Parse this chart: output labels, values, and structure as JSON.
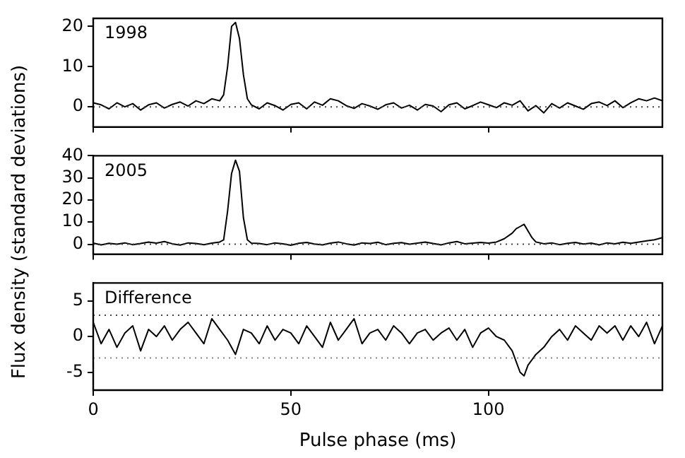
{
  "chart_data": [
    {
      "type": "line",
      "annotations": [
        "1998"
      ],
      "xlim": [
        0,
        144
      ],
      "xticks": [
        0,
        50,
        100
      ],
      "ylim": [
        -5,
        22
      ],
      "yticks": [
        0,
        10,
        20
      ],
      "tick_labels": "y",
      "grid": false,
      "legend": false,
      "marker": "none",
      "line_style": "solid",
      "ref_lines": [
        {
          "axis": "y",
          "value": 0,
          "color": "#444444",
          "line_style": "dotted"
        }
      ],
      "series": [
        {
          "color": "#000000",
          "x": [
            0,
            2,
            4,
            6,
            8,
            10,
            12,
            14,
            16,
            18,
            20,
            22,
            24,
            26,
            28,
            30,
            32,
            33,
            34,
            35,
            36,
            37,
            38,
            39,
            40,
            42,
            44,
            46,
            48,
            50,
            52,
            54,
            56,
            58,
            60,
            62,
            64,
            66,
            68,
            70,
            72,
            74,
            76,
            78,
            80,
            82,
            84,
            86,
            88,
            90,
            92,
            94,
            96,
            98,
            100,
            102,
            104,
            106,
            108,
            110,
            112,
            114,
            116,
            118,
            120,
            122,
            124,
            126,
            128,
            130,
            132,
            134,
            136,
            138,
            140,
            142,
            144
          ],
          "values": [
            1,
            0.5,
            -0.5,
            1,
            0,
            0.8,
            -0.8,
            0.5,
            1,
            -0.3,
            0.6,
            1.2,
            0.2,
            1.5,
            0.8,
            2,
            1.5,
            3,
            10,
            20,
            21,
            17,
            8,
            2,
            0.5,
            -0.5,
            1,
            0.3,
            -0.8,
            0.6,
            1,
            -0.5,
            1.2,
            0.4,
            2,
            1.5,
            0.3,
            -0.4,
            0.8,
            0.2,
            -0.6,
            0.5,
            1,
            -0.3,
            0.4,
            -0.8,
            0.6,
            0.2,
            -1.2,
            0.5,
            1,
            -0.5,
            0.3,
            1.2,
            0.5,
            -0.2,
            1,
            0.4,
            1.5,
            -1,
            0.3,
            -1.5,
            0.8,
            -0.3,
            1,
            0.2,
            -0.6,
            0.8,
            1.2,
            0.3,
            1.5,
            -0.2,
            1,
            2,
            1.5,
            2.2,
            1.5
          ]
        }
      ]
    },
    {
      "type": "line",
      "annotations": [
        "2005"
      ],
      "ylabel": "Flux density (standard deviations)",
      "xlim": [
        0,
        144
      ],
      "xticks": [
        0,
        50,
        100
      ],
      "ylim": [
        -4.5,
        40
      ],
      "yticks": [
        0,
        10,
        20,
        30,
        40
      ],
      "tick_labels": "y",
      "grid": false,
      "legend": false,
      "marker": "none",
      "line_style": "solid",
      "ref_lines": [
        {
          "axis": "y",
          "value": 0,
          "color": "#444444",
          "line_style": "dotted"
        }
      ],
      "series": [
        {
          "color": "#000000",
          "x": [
            0,
            2,
            4,
            6,
            8,
            10,
            12,
            14,
            16,
            18,
            20,
            22,
            24,
            26,
            28,
            30,
            32,
            33,
            34,
            35,
            36,
            37,
            38,
            39,
            40,
            42,
            44,
            46,
            48,
            50,
            52,
            54,
            56,
            58,
            60,
            62,
            64,
            66,
            68,
            70,
            72,
            74,
            76,
            78,
            80,
            82,
            84,
            86,
            88,
            90,
            92,
            94,
            96,
            98,
            100,
            102,
            104,
            106,
            107,
            108,
            109,
            110,
            111,
            112,
            114,
            116,
            118,
            120,
            122,
            124,
            126,
            128,
            130,
            132,
            134,
            136,
            138,
            140,
            142,
            144
          ],
          "values": [
            0.5,
            -0.3,
            0.4,
            0,
            0.6,
            -0.2,
            0.3,
            1,
            0.5,
            1.2,
            0.2,
            -0.4,
            0.6,
            0.3,
            -0.2,
            0.5,
            1,
            2,
            15,
            32,
            38,
            33,
            12,
            2,
            0.5,
            0.3,
            -0.2,
            0.6,
            0.2,
            -0.5,
            0.4,
            0.8,
            0.1,
            -0.3,
            0.5,
            1,
            0.2,
            -0.4,
            0.6,
            0.3,
            0.9,
            -0.2,
            0.4,
            0.7,
            0,
            0.5,
            1,
            0.3,
            -0.3,
            0.6,
            1.2,
            0.2,
            0.5,
            0.8,
            0.5,
            1,
            2.5,
            5,
            7,
            8,
            9,
            6,
            3,
            1,
            0.2,
            0.6,
            -0.2,
            0.4,
            0.8,
            0.1,
            0.5,
            -0.3,
            0.6,
            0.2,
            0.9,
            0.4,
            1,
            1.5,
            2,
            3
          ]
        }
      ]
    },
    {
      "type": "line",
      "annotations": [
        "Difference"
      ],
      "xlabel": "Pulse phase (ms)",
      "xlim": [
        0,
        144
      ],
      "xticks": [
        0,
        50,
        100
      ],
      "ylim": [
        -7.5,
        7.5
      ],
      "yticks": [
        -5,
        0,
        5
      ],
      "grid": false,
      "legend": false,
      "marker": "none",
      "line_style": "solid",
      "ref_lines": [
        {
          "axis": "y",
          "value": 3,
          "color": "#444444",
          "line_style": "dotted"
        },
        {
          "axis": "y",
          "value": -3,
          "color": "#888888",
          "line_style": "dotted"
        }
      ],
      "series": [
        {
          "color": "#000000",
          "x": [
            0,
            2,
            4,
            6,
            8,
            10,
            12,
            14,
            16,
            18,
            20,
            22,
            24,
            26,
            28,
            30,
            32,
            34,
            36,
            38,
            40,
            42,
            44,
            46,
            48,
            50,
            52,
            54,
            56,
            58,
            60,
            62,
            64,
            66,
            68,
            70,
            72,
            74,
            76,
            78,
            80,
            82,
            84,
            86,
            88,
            90,
            92,
            94,
            96,
            98,
            100,
            102,
            104,
            106,
            107,
            108,
            109,
            110,
            112,
            114,
            116,
            118,
            120,
            122,
            124,
            126,
            128,
            130,
            132,
            134,
            136,
            138,
            140,
            142,
            144
          ],
          "values": [
            2,
            -1,
            1,
            -1.5,
            0.5,
            1.5,
            -2,
            1,
            0,
            1.5,
            -0.5,
            1,
            2,
            0.5,
            -1,
            2.5,
            1,
            -0.5,
            -2.5,
            1,
            0.5,
            -1,
            1.5,
            -0.5,
            1,
            0.5,
            -1,
            1.5,
            0,
            -1.5,
            2,
            -0.5,
            1,
            2.5,
            -1,
            0.5,
            1,
            -0.5,
            1.5,
            0.5,
            -1,
            0.5,
            1,
            -0.5,
            0.5,
            1.2,
            -0.5,
            1,
            -1.5,
            0.5,
            1.2,
            0,
            -0.5,
            -2,
            -3.5,
            -5,
            -5.5,
            -4,
            -2.5,
            -1.5,
            0,
            1,
            -0.5,
            1.5,
            0.5,
            -0.5,
            1.5,
            0.5,
            1.5,
            -0.5,
            1.5,
            0,
            2,
            -1,
            1.5
          ]
        }
      ]
    }
  ]
}
